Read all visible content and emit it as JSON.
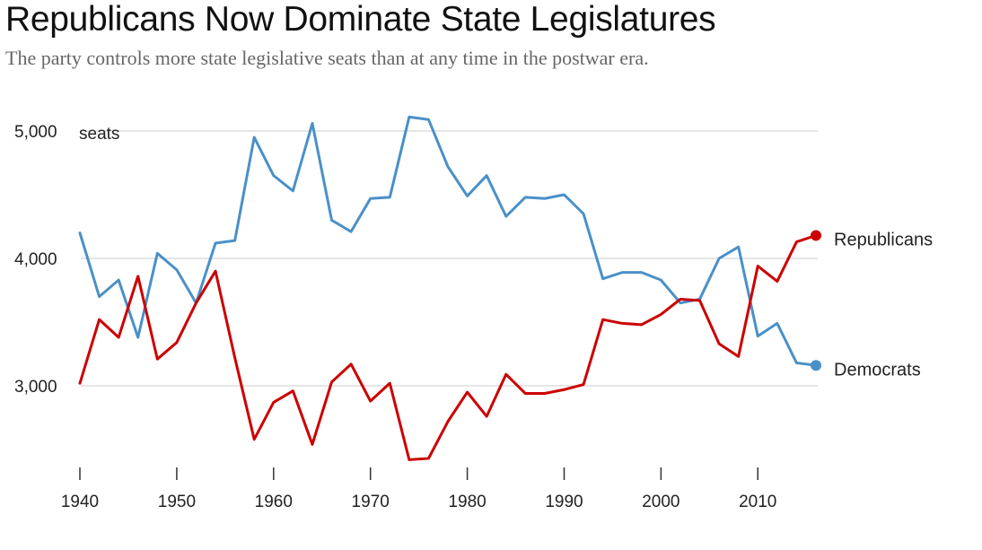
{
  "chart_data": {
    "type": "line",
    "title": "Republicans Now Dominate State Legislatures",
    "subtitle": "The party controls more state legislative seats than at any time in the postwar era.",
    "unit_label": "seats",
    "xlabel": "",
    "ylabel": "seats",
    "xlim": [
      1940,
      2016
    ],
    "ylim": [
      2400,
      5150
    ],
    "y_ticks": [
      {
        "value": 3000,
        "label": "3,000"
      },
      {
        "value": 4000,
        "label": "4,000"
      },
      {
        "value": 5000,
        "label": "5,000"
      }
    ],
    "x_ticks": [
      {
        "value": 1940,
        "label": "1940"
      },
      {
        "value": 1950,
        "label": "1950"
      },
      {
        "value": 1960,
        "label": "1960"
      },
      {
        "value": 1970,
        "label": "1970"
      },
      {
        "value": 1980,
        "label": "1980"
      },
      {
        "value": 1990,
        "label": "1990"
      },
      {
        "value": 2000,
        "label": "2000"
      },
      {
        "value": 2010,
        "label": "2010"
      }
    ],
    "grid": true,
    "x": [
      1940,
      1942,
      1944,
      1946,
      1948,
      1950,
      1952,
      1954,
      1956,
      1958,
      1960,
      1962,
      1964,
      1966,
      1968,
      1970,
      1972,
      1974,
      1976,
      1978,
      1980,
      1982,
      1984,
      1986,
      1988,
      1990,
      1992,
      1994,
      1996,
      1998,
      2000,
      2002,
      2004,
      2006,
      2008,
      2010,
      2012,
      2014,
      2016
    ],
    "series": [
      {
        "name": "Republicans",
        "color": "#cc0000",
        "values": [
          3020,
          3520,
          3380,
          3860,
          3210,
          3340,
          3650,
          3900,
          3220,
          2580,
          2870,
          2960,
          2540,
          3030,
          3170,
          2880,
          3020,
          2420,
          2430,
          2720,
          2950,
          2760,
          3090,
          2940,
          2940,
          2970,
          3010,
          3520,
          3490,
          3480,
          3560,
          3680,
          3670,
          3330,
          3230,
          3940,
          3820,
          4130,
          4180
        ]
      },
      {
        "name": "Democrats",
        "color": "#4a90c8",
        "values": [
          4200,
          3700,
          3830,
          3380,
          4040,
          3910,
          3650,
          4120,
          4140,
          4950,
          4650,
          4530,
          5060,
          4300,
          4210,
          4470,
          4480,
          5110,
          5090,
          4720,
          4490,
          4650,
          4330,
          4480,
          4470,
          4500,
          4350,
          3840,
          3890,
          3890,
          3830,
          3650,
          3680,
          4000,
          4090,
          3390,
          3490,
          3180,
          3160
        ]
      }
    ]
  }
}
